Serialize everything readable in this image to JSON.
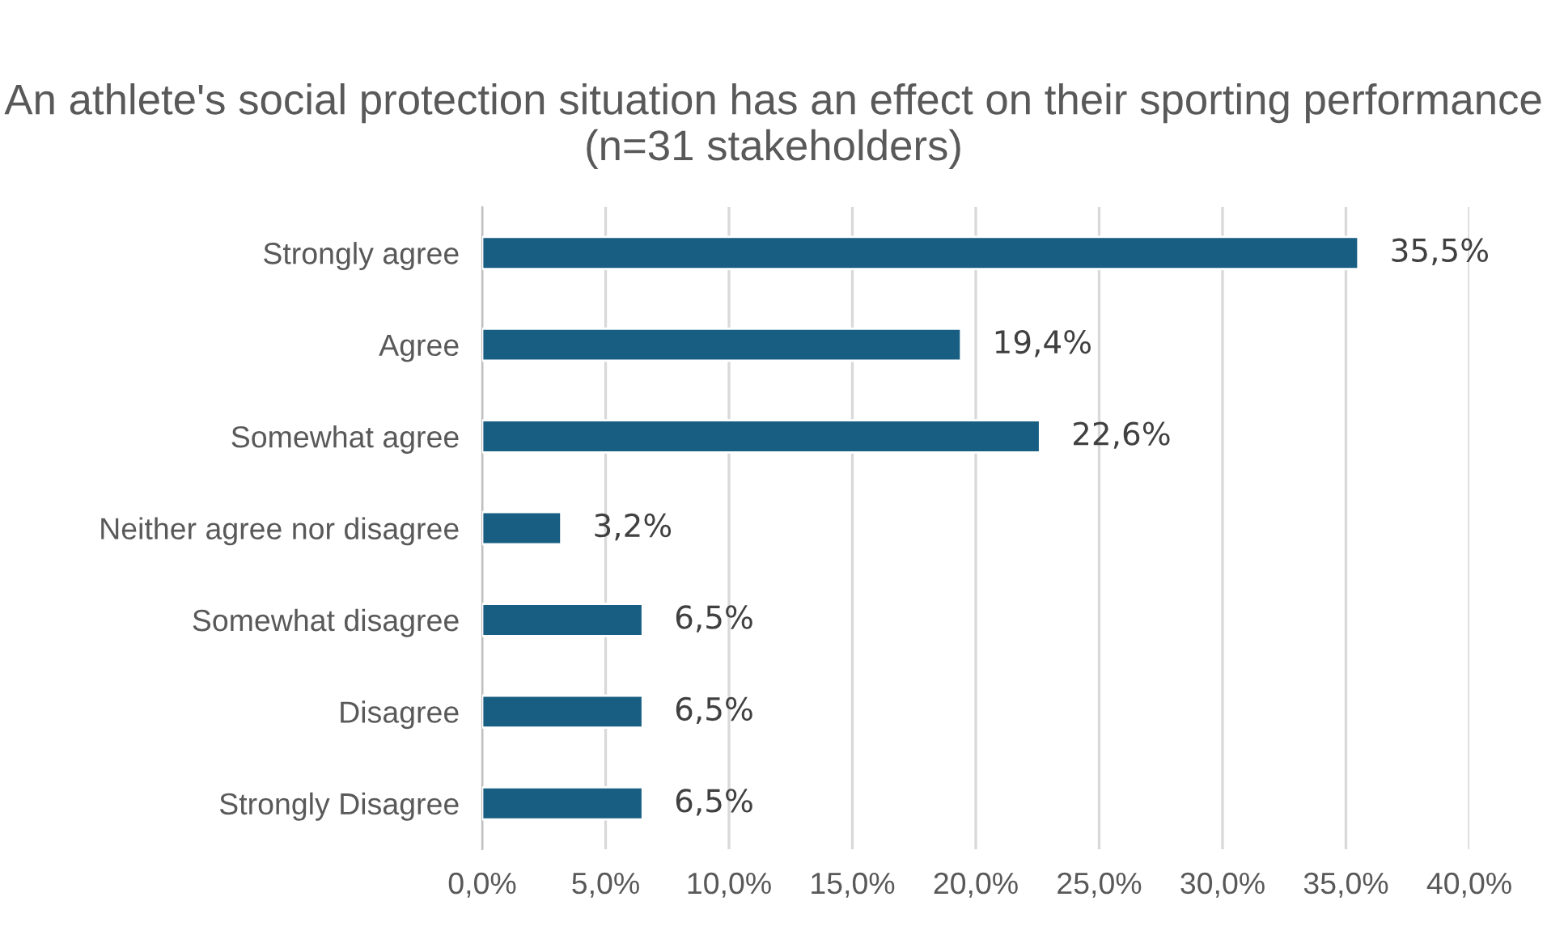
{
  "chart_data": {
    "type": "bar",
    "orientation": "horizontal",
    "title": "An athlete's social protection situation has an effect on their sporting performance (n=31 stakeholders)",
    "categories": [
      "Strongly agree",
      "Agree",
      "Somewhat agree",
      "Neither agree nor disagree",
      "Somewhat disagree",
      "Disagree",
      "Strongly Disagree"
    ],
    "values": [
      35.5,
      19.4,
      22.6,
      3.2,
      6.5,
      6.5,
      6.5
    ],
    "value_labels": [
      "35,5%",
      "19,4%",
      "22,6%",
      "3,2%",
      "6,5%",
      "6,5%",
      "6,5%"
    ],
    "color": "#175e82",
    "xlim": [
      0,
      40
    ],
    "xticks": [
      {
        "value": 0,
        "label": "0,0%"
      },
      {
        "value": 5,
        "label": "5,0%"
      },
      {
        "value": 10,
        "label": "10,0%"
      },
      {
        "value": 15,
        "label": "15,0%"
      },
      {
        "value": 20,
        "label": "20,0%"
      },
      {
        "value": 25,
        "label": "25,0%"
      },
      {
        "value": 30,
        "label": "30,0%"
      },
      {
        "value": 35,
        "label": "35,0%"
      },
      {
        "value": 40,
        "label": "40,0%"
      }
    ],
    "grid": "x"
  }
}
